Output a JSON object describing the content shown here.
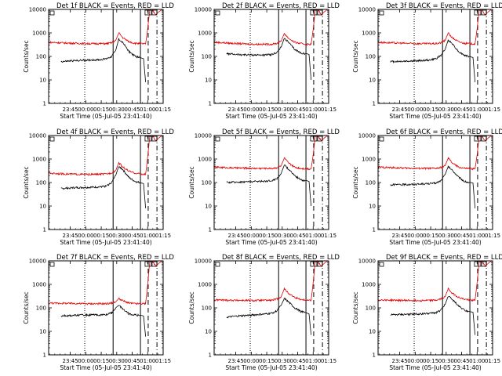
{
  "colors": {
    "events": "#000000",
    "lld": "#e00000",
    "axes": "#000000",
    "background": "#ffffff"
  },
  "chart_data": {
    "type": "line",
    "ylog": true,
    "ylim": [
      1,
      10000
    ],
    "y_ticks": [
      "1",
      "10",
      "100",
      "1000",
      "10000"
    ],
    "xlim_min": [
      -18,
      93
    ],
    "ylabel": "Counts/sec",
    "xlabel": "Start Time (05-Jul-05 23:41:40)",
    "x_ticks": [
      {
        "t": 3,
        "label": "23:45"
      },
      {
        "t": 18,
        "label": "00:00"
      },
      {
        "t": 33,
        "label": "00:15"
      },
      {
        "t": 48,
        "label": "00:30"
      },
      {
        "t": 63,
        "label": "00:45"
      },
      {
        "t": 78,
        "label": "01:00"
      },
      {
        "t": 93,
        "label": "01:15"
      }
    ],
    "panels": [
      {
        "title": "Det 1f BLACK = Events, RED = LLD",
        "vlines": [
          {
            "t": 17,
            "style": "dotted"
          },
          {
            "t": 44.5,
            "style": "solid"
          },
          {
            "t": 71,
            "style": "solid"
          },
          {
            "t": 78.5,
            "style": "dashed"
          },
          {
            "t": 87,
            "style": "dashdot"
          }
        ],
        "series": [
          {
            "name": "Events",
            "x": [
              -6,
              5,
              20,
              32,
              38,
              43,
              47,
              50,
              54,
              60,
              66,
              70,
              72,
              74,
              76
            ],
            "y": [
              60,
              65,
              70,
              72,
              80,
              100,
              180,
              550,
              380,
              160,
              100,
              90,
              85,
              80,
              8
            ]
          },
          {
            "name": "LLD",
            "x": [
              -18,
              0,
              20,
              38,
              43,
              47,
              50,
              54,
              60,
              66,
              72,
              76,
              78,
              80,
              82,
              86,
              89,
              92
            ],
            "y": [
              400,
              370,
              350,
              350,
              380,
              480,
              1000,
              620,
              420,
              360,
              350,
              340,
              1500,
              9000,
              10000,
              6000,
              8000,
              10000
            ]
          }
        ]
      },
      {
        "title": "Det 2f BLACK = Events, RED = LLD",
        "vlines": [
          {
            "t": 17,
            "style": "dotted"
          },
          {
            "t": 44.5,
            "style": "solid"
          },
          {
            "t": 71,
            "style": "solid"
          },
          {
            "t": 78.5,
            "style": "dashed"
          },
          {
            "t": 87,
            "style": "dashdot"
          }
        ],
        "series": [
          {
            "name": "Events",
            "x": [
              -6,
              5,
              20,
              32,
              38,
              43,
              47,
              50,
              54,
              60,
              66,
              70,
              72,
              74,
              76
            ],
            "y": [
              130,
              120,
              115,
              115,
              120,
              150,
              250,
              600,
              400,
              200,
              140,
              130,
              130,
              120,
              10
            ]
          },
          {
            "name": "LLD",
            "x": [
              -18,
              0,
              20,
              38,
              43,
              47,
              50,
              54,
              60,
              66,
              72,
              76,
              78,
              80,
              82,
              86,
              89,
              92
            ],
            "y": [
              400,
              360,
              330,
              330,
              360,
              450,
              950,
              600,
              400,
              350,
              330,
              330,
              1400,
              9000,
              10000,
              6000,
              8000,
              10000
            ]
          }
        ]
      },
      {
        "title": "Det 3f BLACK = Events, RED = LLD",
        "vlines": [
          {
            "t": 17,
            "style": "dotted"
          },
          {
            "t": 44.5,
            "style": "solid"
          },
          {
            "t": 71,
            "style": "solid"
          },
          {
            "t": 78.5,
            "style": "dashed"
          },
          {
            "t": 87,
            "style": "dashdot"
          }
        ],
        "series": [
          {
            "name": "Events",
            "x": [
              -6,
              5,
              20,
              32,
              38,
              43,
              47,
              50,
              54,
              60,
              66,
              70,
              72,
              74,
              76
            ],
            "y": [
              60,
              62,
              65,
              70,
              80,
              110,
              200,
              500,
              350,
              160,
              110,
              100,
              95,
              90,
              8
            ]
          },
          {
            "name": "LLD",
            "x": [
              -18,
              0,
              20,
              38,
              43,
              47,
              50,
              54,
              60,
              66,
              72,
              76,
              78,
              80,
              82,
              86,
              89,
              92
            ],
            "y": [
              400,
              370,
              350,
              350,
              380,
              480,
              1000,
              620,
              420,
              360,
              350,
              340,
              1500,
              9000,
              10000,
              6000,
              8000,
              10000
            ]
          }
        ]
      },
      {
        "title": "Det 4f BLACK = Events, RED = LLD",
        "vlines": [
          {
            "t": 17,
            "style": "dotted"
          },
          {
            "t": 44.5,
            "style": "solid"
          },
          {
            "t": 71,
            "style": "solid"
          },
          {
            "t": 78.5,
            "style": "dashed"
          },
          {
            "t": 87,
            "style": "dashdot"
          }
        ],
        "series": [
          {
            "name": "Events",
            "x": [
              -6,
              5,
              20,
              32,
              38,
              43,
              47,
              50,
              54,
              60,
              66,
              70,
              72,
              74,
              76
            ],
            "y": [
              55,
              60,
              62,
              65,
              70,
              100,
              200,
              500,
              350,
              160,
              110,
              100,
              95,
              90,
              8
            ]
          },
          {
            "name": "LLD",
            "x": [
              -18,
              0,
              20,
              38,
              43,
              47,
              50,
              54,
              60,
              66,
              72,
              76,
              78,
              80,
              82,
              86,
              89,
              92
            ],
            "y": [
              250,
              230,
              220,
              230,
              260,
              320,
              700,
              450,
              300,
              250,
              230,
              220,
              1200,
              9000,
              10000,
              6000,
              8000,
              10000
            ]
          }
        ]
      },
      {
        "title": "Det 5f BLACK = Events, RED = LLD",
        "vlines": [
          {
            "t": 17,
            "style": "dotted"
          },
          {
            "t": 44.5,
            "style": "solid"
          },
          {
            "t": 71,
            "style": "solid"
          },
          {
            "t": 78.5,
            "style": "dashed"
          },
          {
            "t": 87,
            "style": "dashdot"
          }
        ],
        "series": [
          {
            "name": "Events",
            "x": [
              -6,
              5,
              20,
              32,
              38,
              43,
              47,
              50,
              54,
              60,
              66,
              70,
              72,
              74,
              76
            ],
            "y": [
              100,
              105,
              110,
              115,
              120,
              150,
              250,
              550,
              380,
              200,
              130,
              120,
              120,
              110,
              10
            ]
          },
          {
            "name": "LLD",
            "x": [
              -18,
              0,
              20,
              38,
              43,
              47,
              50,
              54,
              60,
              66,
              72,
              76,
              78,
              80,
              82,
              86,
              89,
              92
            ],
            "y": [
              450,
              420,
              400,
              400,
              430,
              520,
              1100,
              680,
              450,
              400,
              390,
              380,
              1500,
              9000,
              10000,
              6000,
              8000,
              10000
            ]
          }
        ]
      },
      {
        "title": "Det 6f BLACK = Events, RED = LLD",
        "vlines": [
          {
            "t": 17,
            "style": "dotted"
          },
          {
            "t": 44.5,
            "style": "solid"
          },
          {
            "t": 71,
            "style": "solid"
          },
          {
            "t": 78.5,
            "style": "dashed"
          },
          {
            "t": 87,
            "style": "dashdot"
          }
        ],
        "series": [
          {
            "name": "Events",
            "x": [
              -6,
              5,
              20,
              32,
              38,
              43,
              47,
              50,
              54,
              60,
              66,
              70,
              72,
              74,
              76
            ],
            "y": [
              80,
              82,
              85,
              90,
              95,
              120,
              220,
              480,
              330,
              170,
              110,
              100,
              100,
              95,
              8
            ]
          },
          {
            "name": "LLD",
            "x": [
              -18,
              0,
              20,
              38,
              43,
              47,
              50,
              54,
              60,
              66,
              72,
              76,
              78,
              80,
              82,
              86,
              89,
              92
            ],
            "y": [
              450,
              420,
              400,
              400,
              430,
              520,
              1100,
              680,
              450,
              400,
              390,
              380,
              1500,
              9000,
              10000,
              6000,
              8000,
              10000
            ]
          }
        ]
      },
      {
        "title": "Det 7f BLACK = Events, RED = LLD",
        "vlines": [
          {
            "t": 17,
            "style": "dotted"
          },
          {
            "t": 44.5,
            "style": "solid"
          },
          {
            "t": 71,
            "style": "solid"
          },
          {
            "t": 78.5,
            "style": "dashed"
          },
          {
            "t": 87,
            "style": "dashdot"
          }
        ],
        "series": [
          {
            "name": "Events",
            "x": [
              -6,
              5,
              20,
              32,
              38,
              43,
              47,
              50,
              54,
              60,
              66,
              70,
              72,
              74,
              76
            ],
            "y": [
              45,
              48,
              50,
              50,
              52,
              60,
              100,
              130,
              90,
              55,
              50,
              48,
              48,
              45,
              6
            ]
          },
          {
            "name": "LLD",
            "x": [
              -18,
              0,
              20,
              38,
              43,
              47,
              50,
              54,
              60,
              66,
              72,
              76,
              78,
              80,
              82,
              86,
              89,
              92
            ],
            "y": [
              160,
              155,
              150,
              150,
              160,
              180,
              250,
              200,
              160,
              150,
              150,
              150,
              1000,
              9000,
              10000,
              6000,
              8000,
              10000
            ]
          }
        ]
      },
      {
        "title": "Det 8f BLACK = Events, RED = LLD",
        "vlines": [
          {
            "t": 17,
            "style": "dotted"
          },
          {
            "t": 44.5,
            "style": "solid"
          },
          {
            "t": 71,
            "style": "solid"
          },
          {
            "t": 78.5,
            "style": "dashed"
          },
          {
            "t": 87,
            "style": "dashdot"
          }
        ],
        "series": [
          {
            "name": "Events",
            "x": [
              -6,
              5,
              20,
              32,
              38,
              43,
              47,
              50,
              54,
              60,
              66,
              70,
              72,
              74,
              76
            ],
            "y": [
              40,
              45,
              50,
              55,
              60,
              75,
              130,
              250,
              180,
              100,
              70,
              65,
              60,
              55,
              7
            ]
          },
          {
            "name": "LLD",
            "x": [
              -18,
              0,
              20,
              38,
              43,
              47,
              50,
              54,
              60,
              66,
              72,
              76,
              78,
              80,
              82,
              86,
              89,
              92
            ],
            "y": [
              220,
              210,
              205,
              210,
              240,
              300,
              650,
              420,
              280,
              230,
              215,
              210,
              1200,
              9000,
              10000,
              6000,
              8000,
              10000
            ]
          }
        ]
      },
      {
        "title": "Det 9f BLACK = Events, RED = LLD",
        "vlines": [
          {
            "t": 17,
            "style": "dotted"
          },
          {
            "t": 44.5,
            "style": "solid"
          },
          {
            "t": 71,
            "style": "solid"
          },
          {
            "t": 78.5,
            "style": "dashed"
          },
          {
            "t": 87,
            "style": "dashdot"
          }
        ],
        "series": [
          {
            "name": "Events",
            "x": [
              -6,
              5,
              20,
              32,
              38,
              43,
              47,
              50,
              54,
              60,
              66,
              70,
              72,
              74,
              76
            ],
            "y": [
              50,
              52,
              55,
              58,
              62,
              80,
              140,
              320,
              230,
              120,
              80,
              70,
              68,
              65,
              7
            ]
          },
          {
            "name": "LLD",
            "x": [
              -18,
              0,
              20,
              38,
              43,
              47,
              50,
              54,
              60,
              66,
              72,
              76,
              78,
              80,
              82,
              86,
              89,
              92
            ],
            "y": [
              220,
              210,
              205,
              210,
              240,
              300,
              650,
              420,
              280,
              230,
              215,
              210,
              1200,
              9000,
              10000,
              6000,
              8000,
              10000
            ]
          }
        ]
      }
    ]
  }
}
